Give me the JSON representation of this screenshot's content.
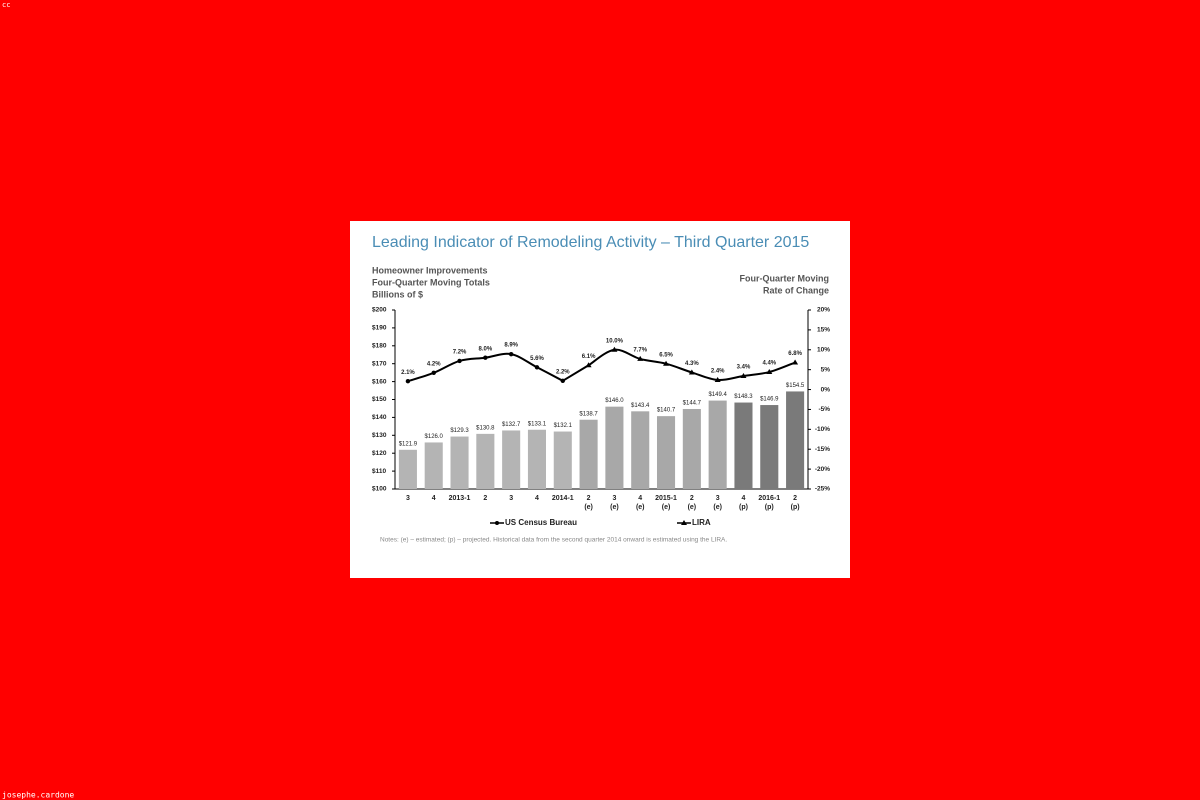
{
  "corner_text": "cc",
  "credit": "josephe.cardone",
  "chart_data": {
    "type": "bar",
    "title": "Leading Indicator of Remodeling Activity – Third Quarter 2015",
    "ylabel": [
      "Homeowner Improvements",
      "Four-Quarter Moving Totals",
      "Billions of $"
    ],
    "y2label": [
      "Four-Quarter Moving",
      "Rate of Change"
    ],
    "notes": "Notes: (e) – estimated; (p) – projected.  Historical data from the second quarter 2014 onward is estimated using the LIRA.",
    "categories": [
      [
        "3"
      ],
      [
        "4"
      ],
      [
        "2013-1"
      ],
      [
        "2"
      ],
      [
        "3"
      ],
      [
        "4"
      ],
      [
        "2014-1"
      ],
      [
        "2",
        "(e)"
      ],
      [
        "3",
        "(e)"
      ],
      [
        "4",
        "(e)"
      ],
      [
        "2015-1",
        "(e)"
      ],
      [
        "2",
        "(e)"
      ],
      [
        "3",
        "(e)"
      ],
      [
        "4",
        "(p)"
      ],
      [
        "2016-1",
        "(p)"
      ],
      [
        "2",
        "(p)"
      ]
    ],
    "values": [
      121.9,
      126.0,
      129.3,
      130.8,
      132.7,
      133.1,
      132.1,
      138.7,
      146.0,
      143.4,
      140.7,
      144.7,
      149.4,
      148.3,
      146.9,
      154.5
    ],
    "value_labels": [
      "$121.9",
      "$126.0",
      "$129.3",
      "$130.8",
      "$132.7",
      "$133.1",
      "$132.1",
      "$138.7",
      "$146.0",
      "$143.4",
      "$140.7",
      "$144.7",
      "$149.4",
      "$148.3",
      "$146.9",
      "$154.5"
    ],
    "colors": [
      "#b4b4b4",
      "#b4b4b4",
      "#b4b4b4",
      "#b4b4b4",
      "#b4b4b4",
      "#b4b4b4",
      "#b4b4b4",
      "#a8a8a8",
      "#a8a8a8",
      "#a8a8a8",
      "#a8a8a8",
      "#a8a8a8",
      "#a8a8a8",
      "#7a7a7a",
      "#7a7a7a",
      "#7a7a7a"
    ],
    "ylim": [
      100,
      200
    ],
    "yticks": [
      {
        "value": 100,
        "label": "$100"
      },
      {
        "value": 110,
        "label": "$110"
      },
      {
        "value": 120,
        "label": "$120"
      },
      {
        "value": 130,
        "label": "$130"
      },
      {
        "value": 140,
        "label": "$140"
      },
      {
        "value": 150,
        "label": "$150"
      },
      {
        "value": 160,
        "label": "$160"
      },
      {
        "value": 170,
        "label": "$170"
      },
      {
        "value": 180,
        "label": "$180"
      },
      {
        "value": 190,
        "label": "$190"
      },
      {
        "value": 200,
        "label": "$200"
      }
    ],
    "y2lim": [
      -25,
      20
    ],
    "y2ticks": [
      {
        "value": -25,
        "label": "-25%"
      },
      {
        "value": -20,
        "label": "-20%"
      },
      {
        "value": -15,
        "label": "-15%"
      },
      {
        "value": -10,
        "label": "-10%"
      },
      {
        "value": -5,
        "label": "-5%"
      },
      {
        "value": 0,
        "label": "0%"
      },
      {
        "value": 5,
        "label": "5%"
      },
      {
        "value": 10,
        "label": "10%"
      },
      {
        "value": 15,
        "label": "15%"
      },
      {
        "value": 20,
        "label": "20%"
      }
    ],
    "series": [
      {
        "name": "US Census Bureau",
        "type": "line",
        "axis": "y2",
        "marker": "circle",
        "color": "#000000",
        "values": [
          2.1,
          4.2,
          7.2,
          8.0,
          8.9,
          5.6,
          2.2,
          null,
          null,
          null,
          null,
          null,
          null,
          null,
          null,
          null
        ],
        "value_labels": [
          "2.1%",
          "4.2%",
          "7.2%",
          "8.0%",
          "8.9%",
          "5.6%",
          "2.2%",
          null,
          null,
          null,
          null,
          null,
          null,
          null,
          null,
          null
        ]
      },
      {
        "name": "LIRA",
        "type": "line",
        "axis": "y2",
        "marker": "triangle",
        "color": "#000000",
        "values": [
          null,
          null,
          null,
          null,
          null,
          null,
          null,
          6.1,
          10.0,
          7.7,
          6.5,
          4.3,
          2.4,
          3.4,
          4.4,
          6.8
        ],
        "value_labels": [
          null,
          null,
          null,
          null,
          null,
          null,
          null,
          "6.1%",
          "10.0%",
          "7.7%",
          "6.5%",
          "4.3%",
          "2.4%",
          "3.4%",
          "4.4%",
          "6.8%"
        ]
      }
    ]
  }
}
